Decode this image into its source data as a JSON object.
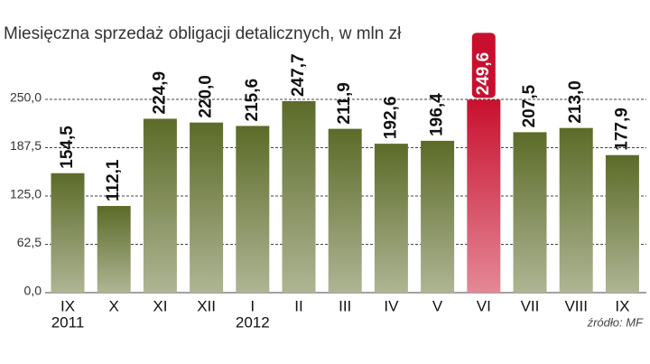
{
  "chart_data": {
    "type": "bar",
    "title": "Miesięczna sprzedaż obligacji detalicznych, w mln zł",
    "categories": [
      "IX",
      "X",
      "XI",
      "XII",
      "I",
      "II",
      "III",
      "IV",
      "V",
      "VI",
      "VII",
      "VIII",
      "IX"
    ],
    "year_labels": [
      "2011",
      null,
      null,
      null,
      "2012",
      null,
      null,
      null,
      null,
      null,
      null,
      null,
      null
    ],
    "values": [
      154.5,
      112.1,
      224.9,
      220.0,
      215.6,
      247.7,
      211.9,
      192.6,
      196.4,
      249.6,
      207.5,
      213.0,
      177.9
    ],
    "value_labels": [
      "154,5",
      "112,1",
      "224,9",
      "220,0",
      "215,6",
      "247,7",
      "211,9",
      "192,6",
      "196,4",
      "249,6",
      "207,5",
      "213,0",
      "177,9"
    ],
    "colors": [
      "#5c6b28",
      "#5c6b28",
      "#5c6b28",
      "#5c6b28",
      "#5c6b28",
      "#5c6b28",
      "#5c6b28",
      "#5c6b28",
      "#5c6b28",
      "#c8102e",
      "#5c6b28",
      "#5c6b28",
      "#5c6b28"
    ],
    "ylim": [
      0,
      250
    ],
    "yticks": [
      {
        "value": 0,
        "label": "0,0"
      },
      {
        "value": 62.5,
        "label": "62,5"
      },
      {
        "value": 125,
        "label": "125,0"
      },
      {
        "value": 187.5,
        "label": "187,5"
      },
      {
        "value": 250,
        "label": "250,0"
      }
    ],
    "grid": true,
    "source": "źródło: MF"
  }
}
